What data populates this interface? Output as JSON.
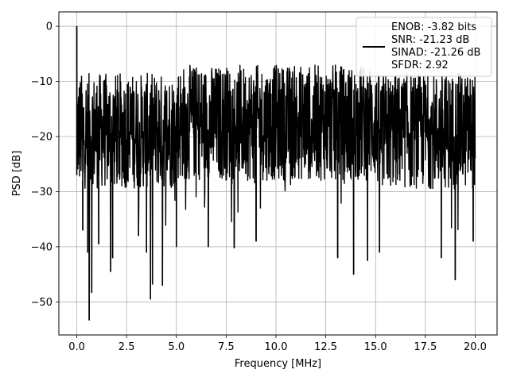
{
  "chart_data": {
    "type": "line",
    "title": "",
    "xlabel": "Frequency [MHz]",
    "ylabel": "PSD [dB]",
    "xlim": [
      -0.9,
      21.1
    ],
    "ylim": [
      -56,
      2.6
    ],
    "xticks": [
      0.0,
      2.5,
      5.0,
      7.5,
      10.0,
      12.5,
      15.0,
      17.5,
      20.0
    ],
    "xtick_labels": [
      "0.0",
      "2.5",
      "5.0",
      "7.5",
      "10.0",
      "12.5",
      "15.0",
      "17.5",
      "20.0"
    ],
    "yticks": [
      0,
      -10,
      -20,
      -30,
      -40,
      -50
    ],
    "ytick_labels": [
      "0",
      "−10",
      "−20",
      "−30",
      "−40",
      "−50"
    ],
    "grid": true,
    "legend_position": "top-right",
    "series": [
      {
        "color": "#000000",
        "description": "dense noise PSD, x from 0 to 20 MHz; bulk between about -30 and -8 dB; peak 0 dB at 0 MHz",
        "x_range": [
          0,
          20
        ],
        "peak": {
          "x": 0.0,
          "y": 0.0
        },
        "dips": [
          {
            "x": 0.3,
            "y": -37
          },
          {
            "x": 0.55,
            "y": -41
          },
          {
            "x": 0.62,
            "y": -53.3
          },
          {
            "x": 0.75,
            "y": -48.3
          },
          {
            "x": 1.1,
            "y": -39.5
          },
          {
            "x": 1.7,
            "y": -44.5
          },
          {
            "x": 1.8,
            "y": -42
          },
          {
            "x": 3.1,
            "y": -38
          },
          {
            "x": 3.5,
            "y": -41
          },
          {
            "x": 3.7,
            "y": -49.5
          },
          {
            "x": 3.8,
            "y": -46.8
          },
          {
            "x": 4.3,
            "y": -47
          },
          {
            "x": 5.0,
            "y": -40
          },
          {
            "x": 6.6,
            "y": -40
          },
          {
            "x": 7.9,
            "y": -40.2
          },
          {
            "x": 9.0,
            "y": -39
          },
          {
            "x": 13.1,
            "y": -42
          },
          {
            "x": 13.9,
            "y": -45
          },
          {
            "x": 14.6,
            "y": -42.5
          },
          {
            "x": 15.2,
            "y": -41
          },
          {
            "x": 18.3,
            "y": -42
          },
          {
            "x": 19.0,
            "y": -46
          },
          {
            "x": 19.9,
            "y": -39
          }
        ],
        "upper_envelope_db": -6.5,
        "lower_typical_db": -30
      }
    ],
    "legend": {
      "lines": [
        "ENOB: -3.82 bits",
        "SNR: -21.23 dB",
        "SINAD: -21.26 dB",
        "SFDR: 2.92"
      ]
    }
  }
}
